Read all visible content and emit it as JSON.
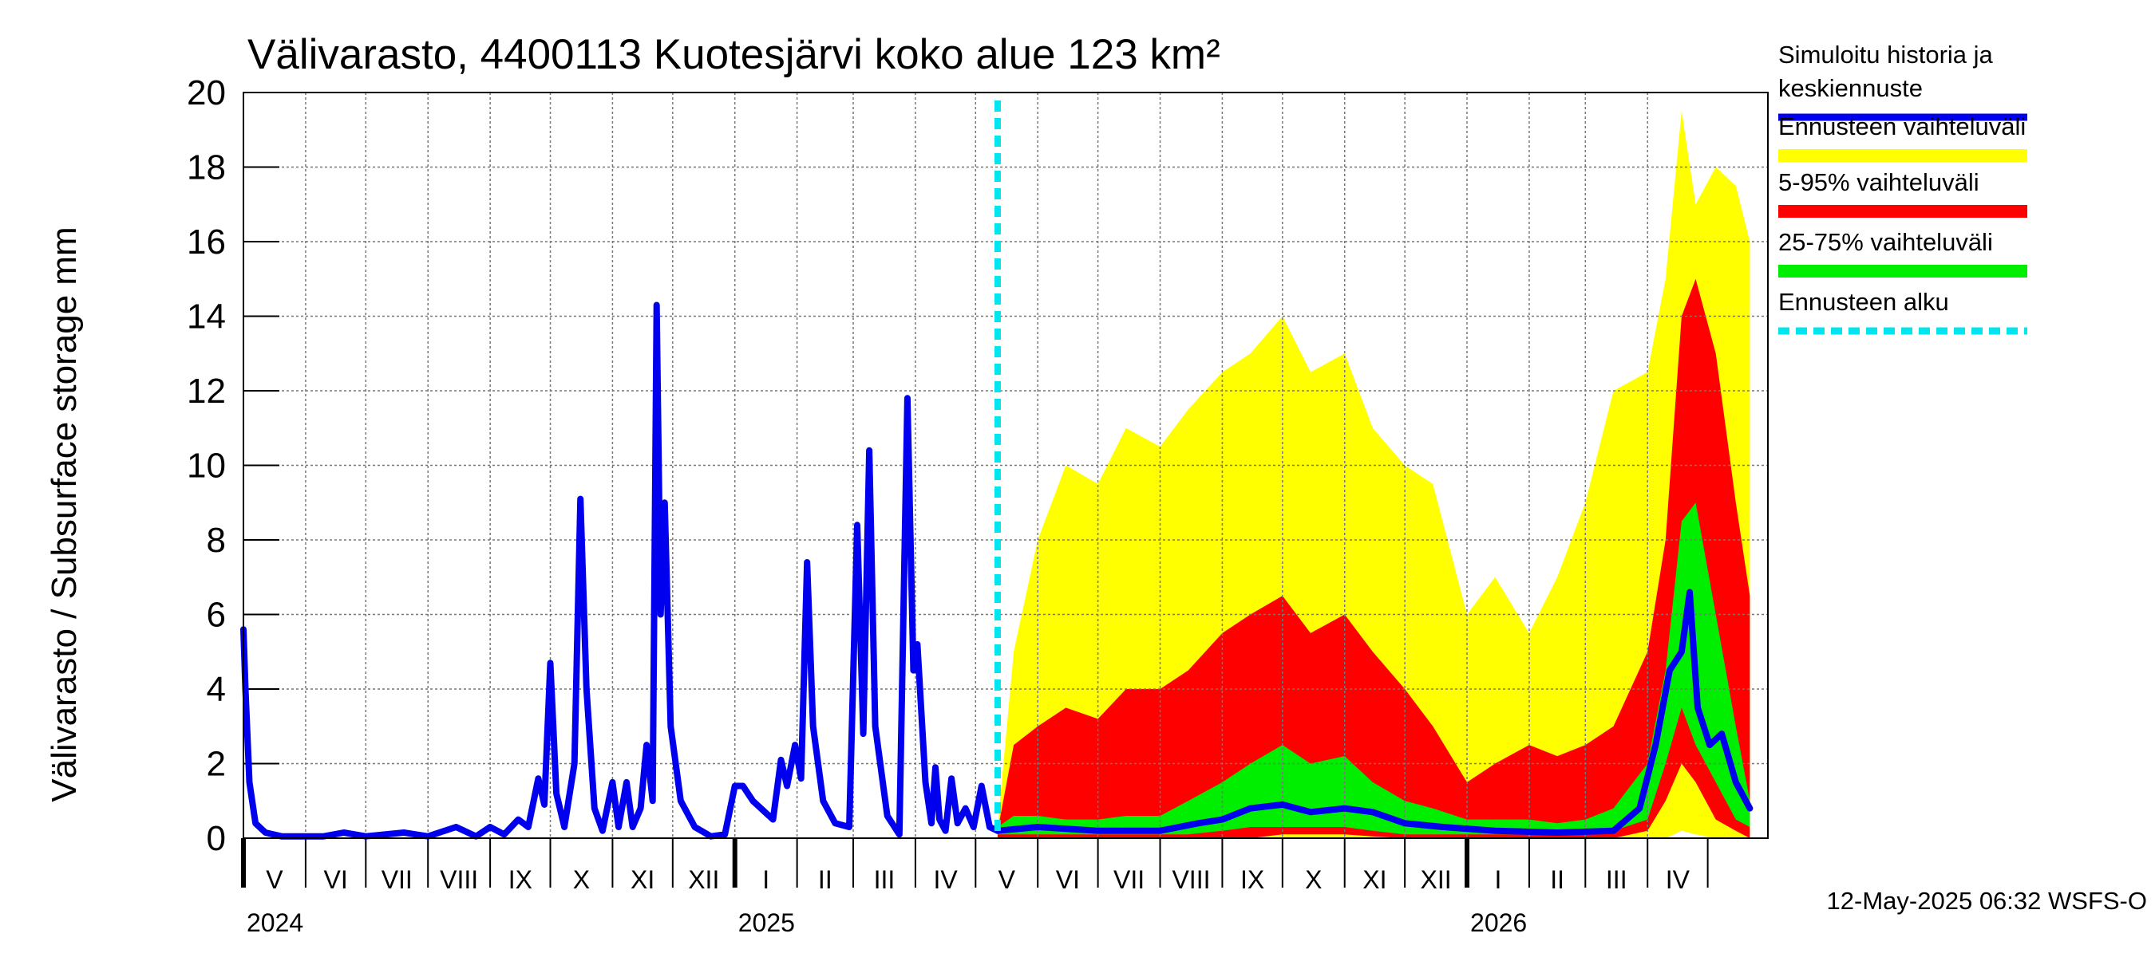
{
  "chart_data": {
    "type": "area",
    "title": "Välivarasto, 4400113 Kuotesjärvi koko alue 123 km²",
    "ylabel": "Välivarasto / Subsurface storage  mm",
    "xlabel": "",
    "ylim": [
      0,
      20
    ],
    "yticks": [
      "0",
      "2",
      "4",
      "6",
      "8",
      "10",
      "12",
      "14",
      "16",
      "18",
      "20"
    ],
    "xlim": [
      "2024-05-01",
      "2026-05-31"
    ],
    "grid": true,
    "months": [
      "V",
      "VI",
      "VII",
      "VIII",
      "IX",
      "X",
      "XI",
      "XII",
      "I",
      "II",
      "III",
      "IV",
      "V",
      "VI",
      "VII",
      "VIII",
      "IX",
      "X",
      "XI",
      "XII",
      "I",
      "II",
      "III",
      "IV"
    ],
    "years": [
      {
        "label": "2024",
        "date": "2024-05-01"
      },
      {
        "label": "2025",
        "date": "2025-01-01"
      },
      {
        "label": "2026",
        "date": "2026-01-01"
      }
    ],
    "forecast_start": "2025-05-12",
    "legend_position": "right",
    "legend": [
      {
        "label": "Simuloitu historia ja keskiennuste",
        "label_lines": [
          "Simuloitu historia ja",
          "keskiennuste"
        ],
        "color": "#0000ee",
        "style": "line"
      },
      {
        "label": "Ennusteen vaihteluväli",
        "color": "#ffff00",
        "style": "band"
      },
      {
        "label": "5-95% vaihteluväli",
        "color": "#ff0000",
        "style": "band"
      },
      {
        "label": "25-75% vaihteluväli",
        "color": "#00ee00",
        "style": "band"
      },
      {
        "label": "Ennusteen alku",
        "color": "#00e5ee",
        "style": "dashed"
      }
    ],
    "history": {
      "name": "Simuloitu historia ja keskiennuste",
      "points": [
        [
          "2024-05-01",
          5.6
        ],
        [
          "2024-05-02",
          4.0
        ],
        [
          "2024-05-04",
          1.5
        ],
        [
          "2024-05-07",
          0.4
        ],
        [
          "2024-05-12",
          0.15
        ],
        [
          "2024-05-20",
          0.05
        ],
        [
          "2024-06-10",
          0.05
        ],
        [
          "2024-06-20",
          0.15
        ],
        [
          "2024-07-01",
          0.05
        ],
        [
          "2024-07-20",
          0.15
        ],
        [
          "2024-08-01",
          0.05
        ],
        [
          "2024-08-15",
          0.3
        ],
        [
          "2024-08-25",
          0.05
        ],
        [
          "2024-09-01",
          0.3
        ],
        [
          "2024-09-08",
          0.1
        ],
        [
          "2024-09-15",
          0.5
        ],
        [
          "2024-09-20",
          0.3
        ],
        [
          "2024-09-25",
          1.6
        ],
        [
          "2024-09-28",
          0.9
        ],
        [
          "2024-10-01",
          4.7
        ],
        [
          "2024-10-04",
          1.2
        ],
        [
          "2024-10-08",
          0.3
        ],
        [
          "2024-10-13",
          2.0
        ],
        [
          "2024-10-16",
          9.1
        ],
        [
          "2024-10-19",
          4.0
        ],
        [
          "2024-10-23",
          0.8
        ],
        [
          "2024-10-27",
          0.2
        ],
        [
          "2024-11-01",
          1.5
        ],
        [
          "2024-11-04",
          0.3
        ],
        [
          "2024-11-08",
          1.5
        ],
        [
          "2024-11-11",
          0.3
        ],
        [
          "2024-11-15",
          0.8
        ],
        [
          "2024-11-18",
          2.5
        ],
        [
          "2024-11-21",
          1.0
        ],
        [
          "2024-11-23",
          14.3
        ],
        [
          "2024-11-25",
          6.0
        ],
        [
          "2024-11-27",
          9.0
        ],
        [
          "2024-11-30",
          3.0
        ],
        [
          "2024-12-05",
          1.0
        ],
        [
          "2024-12-12",
          0.3
        ],
        [
          "2024-12-20",
          0.05
        ],
        [
          "2024-12-27",
          0.1
        ],
        [
          "2025-01-01",
          1.4
        ],
        [
          "2025-01-05",
          1.4
        ],
        [
          "2025-01-10",
          1.0
        ],
        [
          "2025-01-16",
          0.7
        ],
        [
          "2025-01-20",
          0.5
        ],
        [
          "2025-01-24",
          2.1
        ],
        [
          "2025-01-27",
          1.4
        ],
        [
          "2025-01-31",
          2.5
        ],
        [
          "2025-02-03",
          1.6
        ],
        [
          "2025-02-06",
          7.4
        ],
        [
          "2025-02-09",
          3.0
        ],
        [
          "2025-02-14",
          1.0
        ],
        [
          "2025-02-20",
          0.4
        ],
        [
          "2025-02-27",
          0.3
        ],
        [
          "2025-03-03",
          8.4
        ],
        [
          "2025-03-06",
          2.8
        ],
        [
          "2025-03-09",
          10.4
        ],
        [
          "2025-03-12",
          3.0
        ],
        [
          "2025-03-18",
          0.6
        ],
        [
          "2025-03-24",
          0.1
        ],
        [
          "2025-03-28",
          11.8
        ],
        [
          "2025-03-31",
          4.5
        ],
        [
          "2025-04-02",
          5.2
        ],
        [
          "2025-04-06",
          1.5
        ],
        [
          "2025-04-09",
          0.4
        ],
        [
          "2025-04-11",
          1.9
        ],
        [
          "2025-04-13",
          0.5
        ],
        [
          "2025-04-16",
          0.2
        ],
        [
          "2025-04-19",
          1.6
        ],
        [
          "2025-04-22",
          0.4
        ],
        [
          "2025-04-26",
          0.8
        ],
        [
          "2025-04-30",
          0.3
        ],
        [
          "2025-05-04",
          1.4
        ],
        [
          "2025-05-08",
          0.3
        ],
        [
          "2025-05-12",
          0.2
        ]
      ]
    },
    "median_forecast": {
      "name": "keskiennuste",
      "points": [
        [
          "2025-05-12",
          0.2
        ],
        [
          "2025-06-01",
          0.3
        ],
        [
          "2025-07-01",
          0.2
        ],
        [
          "2025-08-01",
          0.2
        ],
        [
          "2025-08-20",
          0.4
        ],
        [
          "2025-09-01",
          0.5
        ],
        [
          "2025-09-15",
          0.8
        ],
        [
          "2025-10-01",
          0.9
        ],
        [
          "2025-10-15",
          0.7
        ],
        [
          "2025-11-01",
          0.8
        ],
        [
          "2025-11-15",
          0.7
        ],
        [
          "2025-12-01",
          0.4
        ],
        [
          "2025-12-20",
          0.3
        ],
        [
          "2026-01-15",
          0.2
        ],
        [
          "2026-02-15",
          0.15
        ],
        [
          "2026-03-15",
          0.2
        ],
        [
          "2026-03-28",
          0.8
        ],
        [
          "2026-04-05",
          2.5
        ],
        [
          "2026-04-12",
          4.5
        ],
        [
          "2026-04-18",
          5.0
        ],
        [
          "2026-04-22",
          6.6
        ],
        [
          "2026-04-26",
          3.5
        ],
        [
          "2026-05-02",
          2.5
        ],
        [
          "2026-05-08",
          2.8
        ],
        [
          "2026-05-15",
          1.5
        ],
        [
          "2026-05-22",
          0.8
        ]
      ]
    },
    "bands": {
      "x": [
        "2025-05-12",
        "2025-05-20",
        "2025-06-01",
        "2025-06-15",
        "2025-07-01",
        "2025-07-15",
        "2025-08-01",
        "2025-08-15",
        "2025-09-01",
        "2025-09-15",
        "2025-10-01",
        "2025-10-15",
        "2025-11-01",
        "2025-11-15",
        "2025-12-01",
        "2025-12-15",
        "2026-01-01",
        "2026-01-15",
        "2026-02-01",
        "2026-02-15",
        "2026-03-01",
        "2026-03-15",
        "2026-04-01",
        "2026-04-10",
        "2026-04-18",
        "2026-04-25",
        "2026-05-05",
        "2026-05-15",
        "2026-05-22"
      ],
      "min_max": {
        "low": [
          0,
          0,
          0,
          0,
          0,
          0,
          0,
          0,
          0,
          0,
          0,
          0,
          0,
          0,
          0,
          0,
          0,
          0,
          0,
          0,
          0,
          0,
          0,
          0,
          0.2,
          0.1,
          0,
          0,
          0
        ],
        "high": [
          0.3,
          5.0,
          8.0,
          10.0,
          9.5,
          11.0,
          10.5,
          11.5,
          12.5,
          13.0,
          14.0,
          12.5,
          13.0,
          11.0,
          10.0,
          9.5,
          6.0,
          7.0,
          5.5,
          7.0,
          9.0,
          12.0,
          12.5,
          15.0,
          19.5,
          17.0,
          18.0,
          17.5,
          16.0
        ]
      },
      "p5_p95": {
        "low": [
          0,
          0,
          0,
          0,
          0,
          0,
          0,
          0,
          0,
          0,
          0.1,
          0.1,
          0.1,
          0.05,
          0,
          0,
          0,
          0,
          0,
          0,
          0,
          0,
          0.2,
          1.0,
          2.0,
          1.5,
          0.5,
          0.2,
          0
        ],
        "high": [
          0.2,
          2.5,
          3.0,
          3.5,
          3.2,
          4.0,
          4.0,
          4.5,
          5.5,
          6.0,
          6.5,
          5.5,
          6.0,
          5.0,
          4.0,
          3.0,
          1.5,
          2.0,
          2.5,
          2.2,
          2.5,
          3.0,
          5.0,
          8.0,
          14.0,
          15.0,
          13.0,
          9.0,
          6.5
        ]
      },
      "p25_p75": {
        "low": [
          0.1,
          0.1,
          0.1,
          0.1,
          0.1,
          0.1,
          0.1,
          0.1,
          0.2,
          0.3,
          0.3,
          0.3,
          0.3,
          0.2,
          0.1,
          0.1,
          0.1,
          0.1,
          0.1,
          0.1,
          0.1,
          0.2,
          0.5,
          2.0,
          3.5,
          2.5,
          1.5,
          0.5,
          0.3
        ],
        "high": [
          0.3,
          0.6,
          0.6,
          0.5,
          0.5,
          0.6,
          0.6,
          1.0,
          1.5,
          2.0,
          2.5,
          2.0,
          2.2,
          1.5,
          1.0,
          0.8,
          0.5,
          0.5,
          0.5,
          0.4,
          0.5,
          0.8,
          2.0,
          4.5,
          8.5,
          9.0,
          6.0,
          3.0,
          1.0
        ]
      }
    }
  },
  "footer": {
    "timestamp": "12-May-2025 06:32 WSFS-O"
  }
}
